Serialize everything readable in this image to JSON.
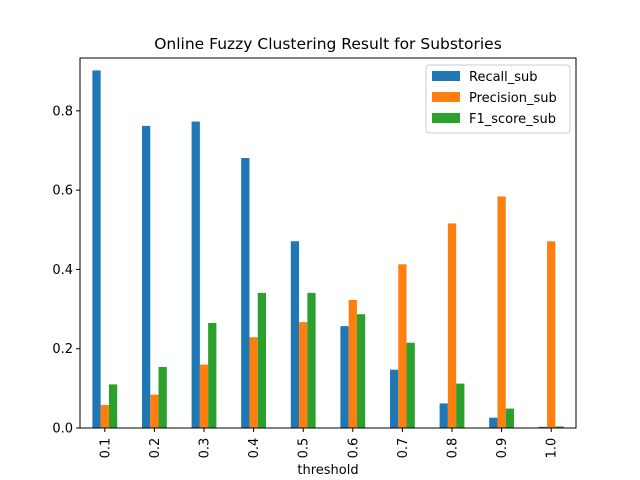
{
  "chart_data": {
    "type": "bar",
    "title": "Online Fuzzy Clustering Result for Substories",
    "xlabel": "threshold",
    "ylabel": "",
    "categories": [
      "0.1",
      "0.2",
      "0.3",
      "0.4",
      "0.5",
      "0.6",
      "0.7",
      "0.8",
      "0.9",
      "1.0"
    ],
    "series": [
      {
        "name": "Recall_sub",
        "color": "#1f77b4",
        "values": [
          0.902,
          0.762,
          0.773,
          0.681,
          0.471,
          0.257,
          0.147,
          0.062,
          0.026,
          0.003
        ]
      },
      {
        "name": "Precision_sub",
        "color": "#ff7f0e",
        "values": [
          0.058,
          0.084,
          0.16,
          0.229,
          0.267,
          0.323,
          0.413,
          0.516,
          0.584,
          0.471
        ]
      },
      {
        "name": "F1_score_sub",
        "color": "#2ca02c",
        "values": [
          0.11,
          0.154,
          0.265,
          0.341,
          0.341,
          0.287,
          0.215,
          0.112,
          0.049,
          0.004
        ]
      }
    ],
    "ylim": [
      0,
      0.9333
    ],
    "yticks": [
      0.0,
      0.2,
      0.4,
      0.6,
      0.8
    ],
    "ytick_labels": [
      "0.0",
      "0.2",
      "0.4",
      "0.6",
      "0.8"
    ],
    "grid": false,
    "legend_position": "top-right"
  }
}
